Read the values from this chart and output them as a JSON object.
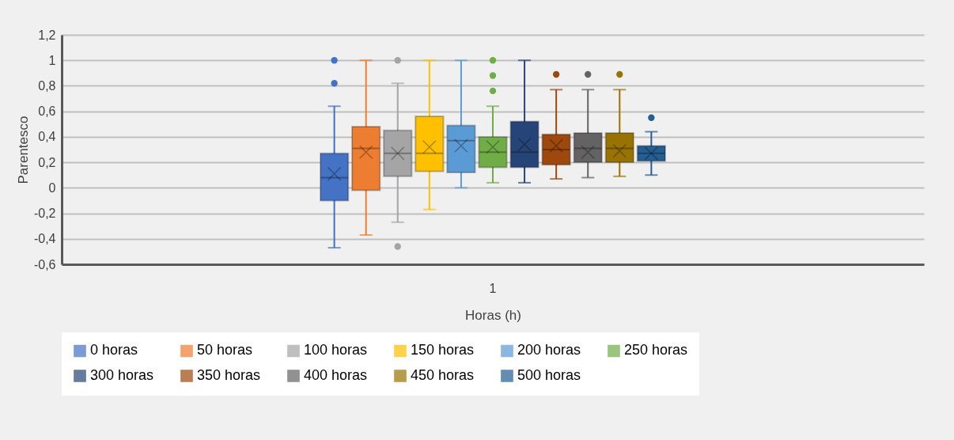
{
  "chart_data": {
    "type": "box",
    "xlabel": "Horas (h)",
    "ylabel": "Parentesco",
    "categories": [
      "1"
    ],
    "ylim": [
      -0.6,
      1.2
    ],
    "yticks": [
      {
        "value": -0.6,
        "label": "-0,6"
      },
      {
        "value": -0.4,
        "label": "-0,4"
      },
      {
        "value": -0.2,
        "label": "-0,2"
      },
      0,
      {
        "value": 0.2,
        "label": "0,2"
      },
      {
        "value": 0.4,
        "label": "0,4"
      },
      {
        "value": 0.6,
        "label": "0,6"
      },
      {
        "value": 0.8,
        "label": "0,8"
      },
      1,
      {
        "value": 1.2,
        "label": "1,2"
      }
    ],
    "grid": "y",
    "legend": "bottom",
    "series": [
      {
        "name": "0 horas",
        "color": "#4472c4",
        "boxes": [
          {
            "low": -0.47,
            "q1": -0.1,
            "median": 0.08,
            "q3": 0.27,
            "high": 0.64,
            "mean": 0.11,
            "outliers": [
              0.82,
              1.0
            ]
          }
        ]
      },
      {
        "name": "50 horas",
        "color": "#ed7d31",
        "boxes": [
          {
            "low": -0.37,
            "q1": -0.02,
            "median": 0.31,
            "q3": 0.48,
            "high": 1.0,
            "mean": 0.28
          }
        ]
      },
      {
        "name": "100 horas",
        "color": "#a5a5a5",
        "boxes": [
          {
            "low": -0.27,
            "q1": 0.09,
            "median": 0.27,
            "q3": 0.45,
            "high": 0.82,
            "mean": 0.27,
            "outliers": [
              1.0,
              -0.46
            ]
          }
        ]
      },
      {
        "name": "150 horas",
        "color": "#ffc000",
        "boxes": [
          {
            "low": -0.17,
            "q1": 0.13,
            "median": 0.27,
            "q3": 0.56,
            "high": 1.0,
            "mean": 0.32
          }
        ]
      },
      {
        "name": "200 horas",
        "color": "#5b9bd5",
        "boxes": [
          {
            "low": 0.0,
            "q1": 0.12,
            "median": 0.37,
            "q3": 0.49,
            "high": 1.0,
            "mean": 0.33
          }
        ]
      },
      {
        "name": "250 horas",
        "color": "#70ad47",
        "boxes": [
          {
            "low": 0.04,
            "q1": 0.16,
            "median": 0.28,
            "q3": 0.4,
            "high": 0.64,
            "mean": 0.32,
            "outliers": [
              0.76,
              0.88,
              1.0
            ]
          }
        ]
      },
      {
        "name": "300 horas",
        "color": "#264478",
        "boxes": [
          {
            "low": 0.04,
            "q1": 0.16,
            "median": 0.28,
            "q3": 0.52,
            "high": 1.0,
            "mean": 0.34
          }
        ]
      },
      {
        "name": "350 horas",
        "color": "#9e480e",
        "boxes": [
          {
            "low": 0.07,
            "q1": 0.18,
            "median": 0.3,
            "q3": 0.42,
            "high": 0.77,
            "mean": 0.33,
            "outliers": [
              0.89
            ]
          }
        ]
      },
      {
        "name": "400 horas",
        "color": "#636363",
        "boxes": [
          {
            "low": 0.08,
            "q1": 0.2,
            "median": 0.31,
            "q3": 0.43,
            "high": 0.77,
            "mean": 0.28,
            "outliers": [
              0.89
            ]
          }
        ]
      },
      {
        "name": "450 horas",
        "color": "#997300",
        "boxes": [
          {
            "low": 0.09,
            "q1": 0.2,
            "median": 0.31,
            "q3": 0.43,
            "high": 0.77,
            "mean": 0.29,
            "outliers": [
              0.89
            ]
          }
        ]
      },
      {
        "name": "500 horas",
        "color": "#255e91",
        "boxes": [
          {
            "low": 0.1,
            "q1": 0.21,
            "median": 0.27,
            "q3": 0.33,
            "high": 0.44,
            "mean": 0.27,
            "outliers": [
              0.55
            ]
          }
        ]
      }
    ]
  }
}
